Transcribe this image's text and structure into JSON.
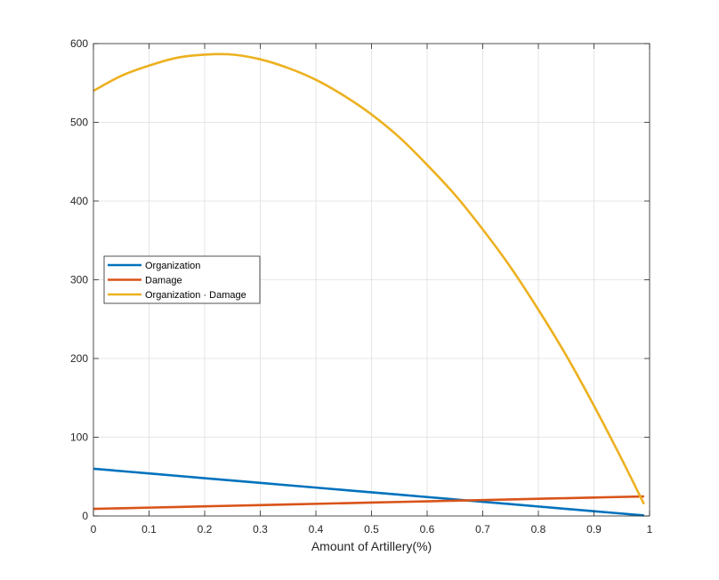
{
  "chart_data": {
    "type": "line",
    "title": "",
    "xlabel": "Amount of Artillery(%)",
    "ylabel": "",
    "xlim": [
      0,
      1
    ],
    "ylim": [
      0,
      600
    ],
    "xticks": [
      "0",
      "0.1",
      "0.2",
      "0.3",
      "0.4",
      "0.5",
      "0.6",
      "0.7",
      "0.8",
      "0.9",
      "1"
    ],
    "yticks": [
      "0",
      "100",
      "200",
      "300",
      "400",
      "500",
      "600"
    ],
    "grid": true,
    "legend_position": "middle-left",
    "series": [
      {
        "name": "Organization",
        "color": "#0072BD",
        "x": [
          0,
          0.1,
          0.2,
          0.3,
          0.4,
          0.5,
          0.6,
          0.7,
          0.8,
          0.9,
          0.99
        ],
        "y": [
          60,
          54,
          48,
          42,
          36,
          30,
          24,
          18,
          12,
          6,
          0.6
        ]
      },
      {
        "name": "Damage",
        "color": "#D95319",
        "x": [
          0,
          0.1,
          0.2,
          0.3,
          0.4,
          0.5,
          0.6,
          0.7,
          0.8,
          0.9,
          0.99
        ],
        "y": [
          9,
          10.6,
          12.2,
          13.8,
          15.4,
          17,
          18.6,
          20.2,
          21.8,
          23.4,
          24.8
        ]
      },
      {
        "name": "Organization · Damage",
        "color": "#EDB120",
        "x": [
          0,
          0.05,
          0.1,
          0.15,
          0.2,
          0.25,
          0.3,
          0.35,
          0.4,
          0.45,
          0.5,
          0.55,
          0.6,
          0.65,
          0.7,
          0.75,
          0.8,
          0.85,
          0.9,
          0.95,
          0.99
        ],
        "y": [
          540,
          559,
          572,
          582,
          586,
          586,
          580,
          569,
          554,
          534,
          510,
          481,
          446,
          408,
          364,
          316,
          262,
          204,
          140,
          72,
          15
        ]
      }
    ]
  }
}
